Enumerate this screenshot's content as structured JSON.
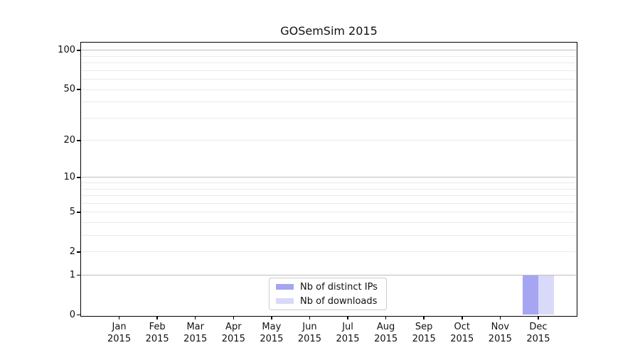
{
  "chart_data": {
    "type": "bar",
    "title": "GOSemSim 2015",
    "year_label": "2015",
    "categories": [
      "Jan",
      "Feb",
      "Mar",
      "Apr",
      "May",
      "Jun",
      "Jul",
      "Aug",
      "Sep",
      "Oct",
      "Nov",
      "Dec"
    ],
    "series": [
      {
        "name": "Nb of distinct IPs",
        "color": "#a5a5f2",
        "values": [
          0,
          0,
          0,
          0,
          0,
          0,
          0,
          0,
          0,
          0,
          0,
          1
        ]
      },
      {
        "name": "Nb of downloads",
        "color": "#d9d9f9",
        "values": [
          0,
          0,
          0,
          0,
          0,
          0,
          0,
          0,
          0,
          0,
          0,
          1
        ]
      }
    ],
    "yscale": "log1p",
    "ylim": [
      0,
      114
    ],
    "yticks": [
      0,
      1,
      2,
      5,
      10,
      20,
      50,
      100
    ],
    "decade_gridlines": [
      1,
      10,
      100
    ],
    "light_gridlines": [
      2,
      3,
      4,
      5,
      6,
      7,
      8,
      9,
      20,
      30,
      40,
      50,
      60,
      70,
      80,
      90
    ],
    "grid": "horizontal",
    "legend_position": "lower center",
    "colors": {
      "decade_grid": "#bdbdbd",
      "minor_grid": "#eaeaea",
      "axis": "#000000",
      "text": "#111111",
      "legend_border": "#cccccc"
    }
  }
}
